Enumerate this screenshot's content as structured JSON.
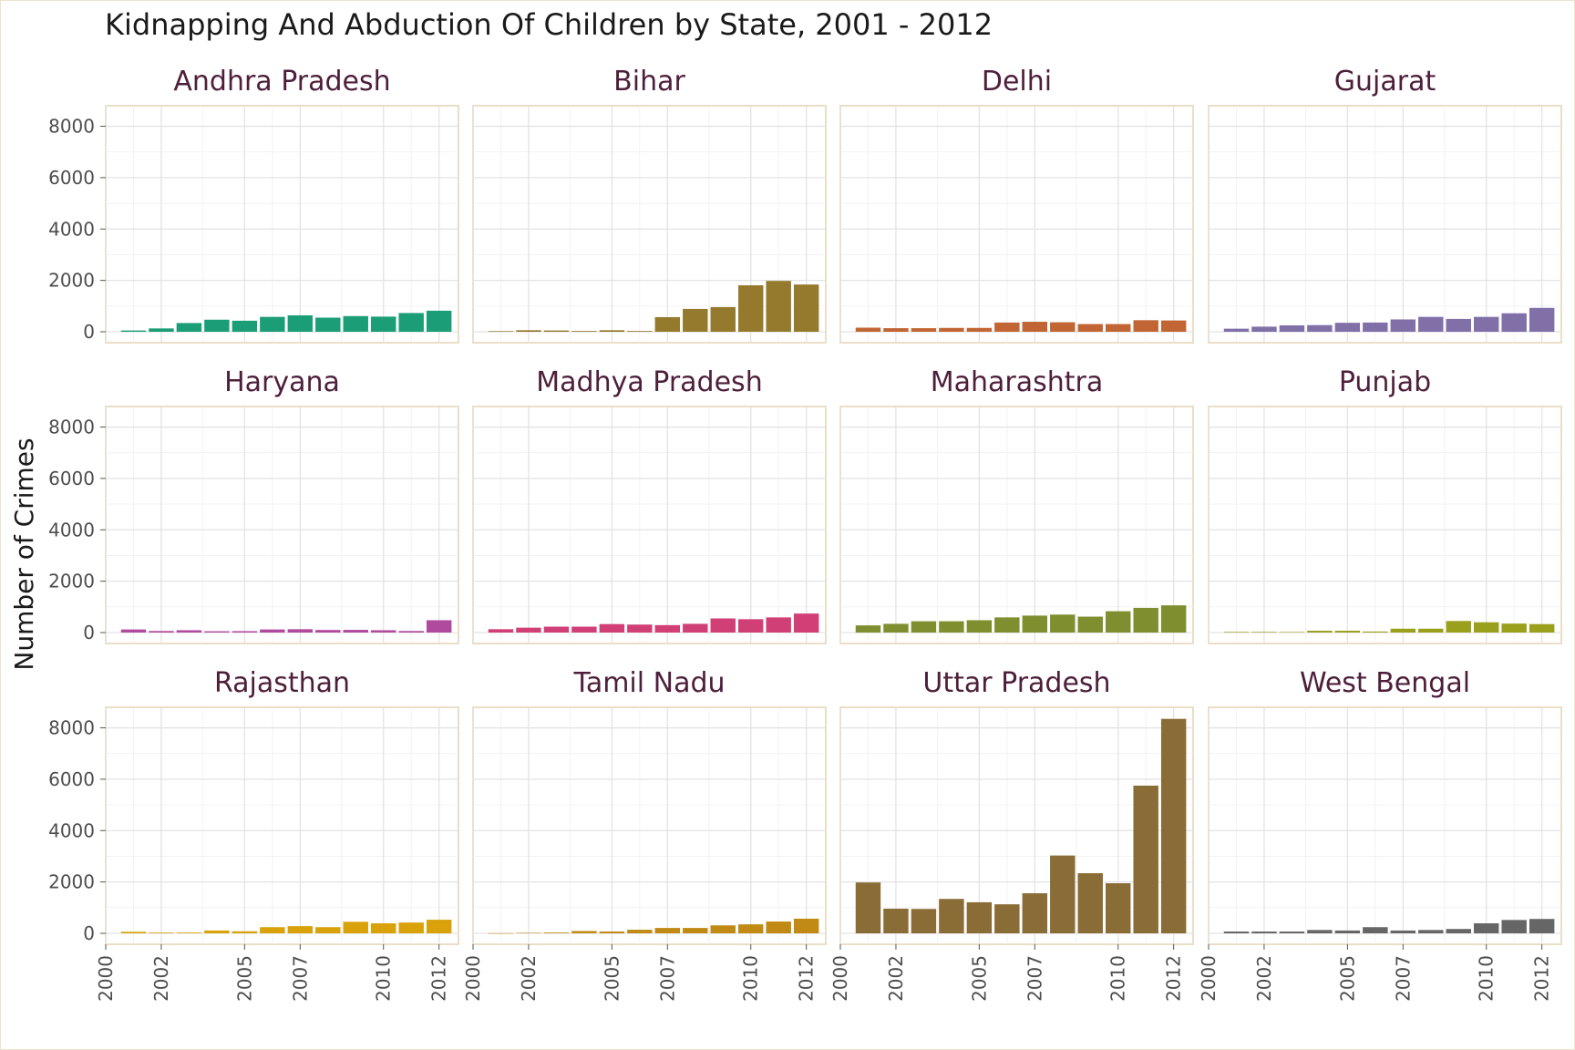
{
  "chart_data": {
    "type": "bar",
    "layout": "facet_wrap",
    "title": "Kidnapping And Abduction Of Children by State, 2001 - 2012",
    "xlabel": "",
    "ylabel": "Number of Crimes",
    "x_ticks": [
      2000,
      2002,
      2005,
      2007,
      2010,
      2012
    ],
    "y_ticks": [
      0,
      2000,
      4000,
      6000,
      8000
    ],
    "xlim": [
      2000,
      2012.7
    ],
    "ylim": [
      0,
      8800
    ],
    "grid": true,
    "legend": "none",
    "x": [
      2001,
      2002,
      2003,
      2004,
      2005,
      2006,
      2007,
      2008,
      2009,
      2010,
      2011,
      2012
    ],
    "panels": [
      {
        "name": "Andhra Pradesh",
        "color": "#1b9e77",
        "values": [
          50,
          130,
          340,
          470,
          430,
          580,
          640,
          550,
          610,
          590,
          730,
          820
        ]
      },
      {
        "name": "Bihar",
        "color": "#957a2e",
        "values": [
          25,
          60,
          50,
          30,
          60,
          30,
          570,
          890,
          960,
          1810,
          1980,
          1840
        ]
      },
      {
        "name": "Delhi",
        "color": "#c26534",
        "values": [
          160,
          140,
          140,
          150,
          150,
          360,
          390,
          370,
          300,
          300,
          450,
          440
        ]
      },
      {
        "name": "Gujarat",
        "color": "#8170a8",
        "values": [
          120,
          200,
          250,
          260,
          350,
          360,
          480,
          580,
          500,
          580,
          720,
          930
        ]
      },
      {
        "name": "Haryana",
        "color": "#b04a9f",
        "values": [
          120,
          60,
          90,
          50,
          55,
          120,
          130,
          100,
          105,
          90,
          60,
          480
        ]
      },
      {
        "name": "Madhya Pradesh",
        "color": "#d13f77",
        "values": [
          130,
          190,
          230,
          230,
          330,
          310,
          290,
          340,
          550,
          520,
          590,
          740
        ]
      },
      {
        "name": "Maharashtra",
        "color": "#7f8f2f",
        "values": [
          280,
          340,
          440,
          440,
          480,
          590,
          660,
          700,
          620,
          830,
          960,
          1060
        ]
      },
      {
        "name": "Punjab",
        "color": "#9aa01b",
        "values": [
          25,
          25,
          20,
          70,
          70,
          40,
          150,
          150,
          450,
          400,
          350,
          330
        ]
      },
      {
        "name": "Rajasthan",
        "color": "#d9a20b",
        "values": [
          60,
          30,
          30,
          110,
          80,
          240,
          280,
          240,
          450,
          390,
          420,
          530
        ]
      },
      {
        "name": "Tamil Nadu",
        "color": "#c08a14",
        "values": [
          5,
          20,
          30,
          90,
          70,
          140,
          210,
          210,
          310,
          350,
          460,
          570
        ]
      },
      {
        "name": "Uttar Pradesh",
        "color": "#8a6c36",
        "values": [
          1980,
          960,
          950,
          1340,
          1210,
          1130,
          1560,
          3030,
          2340,
          1950,
          5750,
          8350
        ]
      },
      {
        "name": "West Bengal",
        "color": "#666666",
        "values": [
          70,
          70,
          70,
          130,
          110,
          240,
          110,
          130,
          170,
          390,
          520,
          560
        ]
      }
    ]
  }
}
